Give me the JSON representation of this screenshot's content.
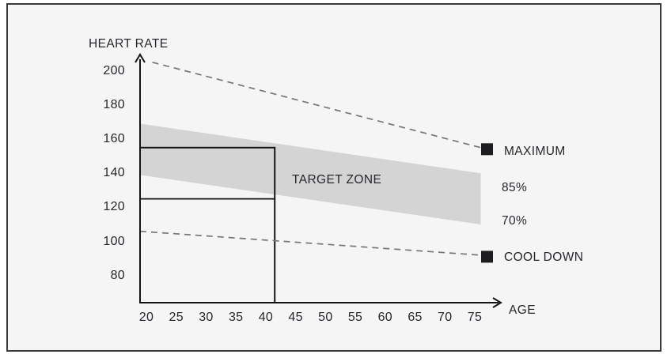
{
  "page": {
    "background": "#ffffff"
  },
  "frame": {
    "background": "#f5f5f6",
    "border_color": "#3a3a3c"
  },
  "chart_data": {
    "type": "line",
    "title": "",
    "ylabel": "HEART RATE",
    "xlabel": "AGE",
    "x_ticks": [
      20,
      25,
      30,
      35,
      40,
      45,
      50,
      55,
      60,
      65,
      70,
      75
    ],
    "y_ticks": [
      200,
      180,
      160,
      140,
      120,
      100,
      80
    ],
    "xlim": [
      20,
      77
    ],
    "ylim": [
      64,
      210
    ],
    "grid": false,
    "legend_position": "right",
    "text_color": "#26262c",
    "axis_color": "#141414",
    "series": [
      {
        "name": "maximum-line",
        "label": "MAXIMUM",
        "type": "line",
        "style": "dashed",
        "color": "#767676",
        "marker": "black-square",
        "marker_color": "#1d1d1f",
        "points": [
          [
            21,
            205
          ],
          [
            76,
            155
          ]
        ]
      },
      {
        "name": "target-zone-band",
        "label": "TARGET ZONE",
        "type": "area",
        "color": "#d4d4d5",
        "upper_label": "85%",
        "lower_label": "70%",
        "upper_points": [
          [
            20,
            169
          ],
          [
            76,
            140
          ]
        ],
        "lower_points": [
          [
            20,
            139
          ],
          [
            76,
            110
          ]
        ]
      },
      {
        "name": "cooldown-line",
        "label": "COOL DOWN",
        "type": "line",
        "style": "dashed",
        "color": "#767676",
        "marker": "black-square",
        "marker_color": "#1d1d1f",
        "points": [
          [
            20,
            106
          ],
          [
            76,
            92
          ]
        ]
      }
    ],
    "highlight_rect": {
      "description": "example reading rectangle from y-axis to ~age 41",
      "age_to": 41.5,
      "hr_top": 155,
      "hr_mid": 125,
      "line_color": "#141414"
    }
  }
}
